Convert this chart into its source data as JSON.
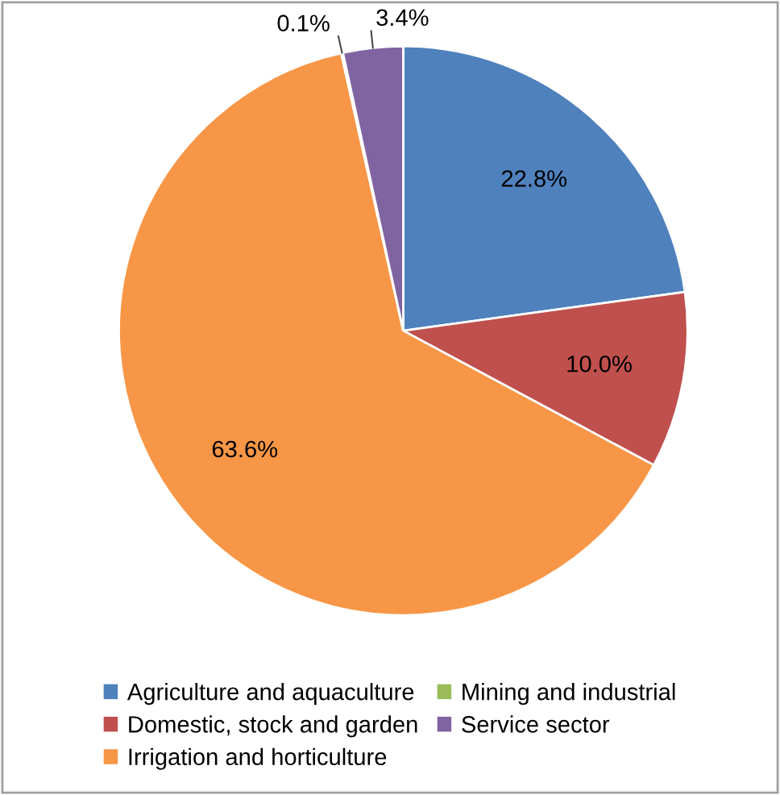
{
  "chart_data": {
    "type": "pie",
    "categories": [
      "Agriculture and aquaculture",
      "Domestic, stock and garden",
      "Irrigation and horticulture",
      "Mining and industrial",
      "Service sector"
    ],
    "values": [
      22.8,
      10.0,
      63.6,
      0.1,
      3.4
    ],
    "colors": [
      "#4f81bd",
      "#c0504d",
      "#f79646",
      "#9bbb59",
      "#8064a2"
    ],
    "value_labels": [
      "22.8%",
      "10.0%",
      "63.6%",
      "0.1%",
      "3.4%"
    ],
    "legend": "bottom"
  }
}
